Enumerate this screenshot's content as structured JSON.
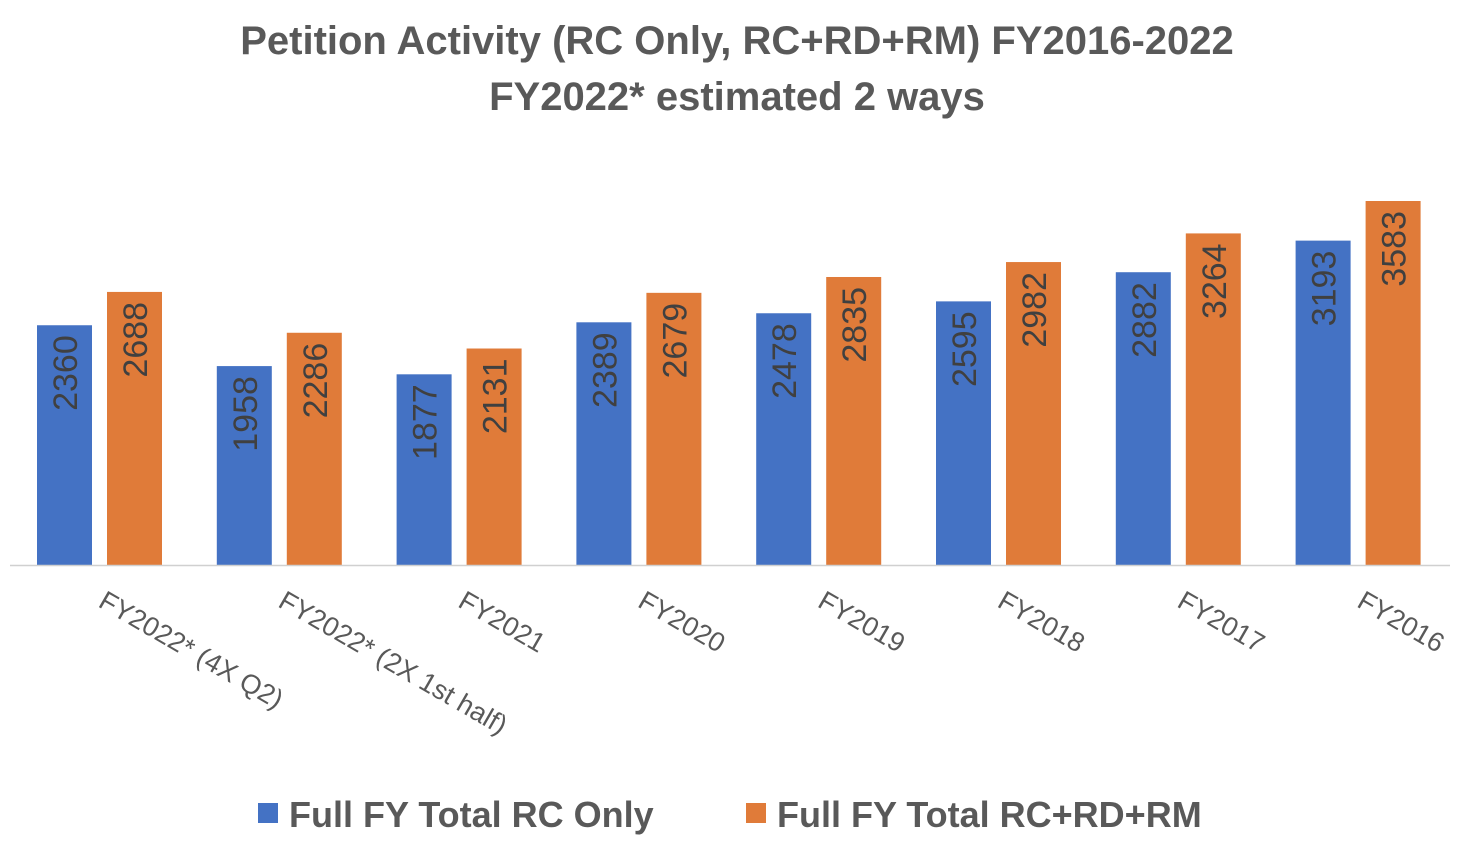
{
  "chart_data": {
    "type": "bar",
    "title": "Petition Activity (RC Only, RC+RD+RM) FY2016-2022",
    "subtitle": "FY2022* estimated 2 ways",
    "xlabel": "",
    "ylabel": "",
    "ylim": [
      0,
      3583
    ],
    "grid": false,
    "legend_position": "bottom",
    "categories": [
      "FY2022* (4X Q2)",
      "FY2022* (2X 1st half)",
      "FY2021",
      "FY2020",
      "FY2019",
      "FY2018",
      "FY2017",
      "FY2016"
    ],
    "series": [
      {
        "name": "Full FY Total RC Only",
        "color": "#4472C4",
        "values": [
          2360,
          1958,
          1877,
          2389,
          2478,
          2595,
          2882,
          3193
        ]
      },
      {
        "name": "Full FY Total RC+RD+RM",
        "color": "#E07B39",
        "values": [
          2688,
          2286,
          2131,
          2679,
          2835,
          2982,
          3264,
          3583
        ]
      }
    ]
  }
}
